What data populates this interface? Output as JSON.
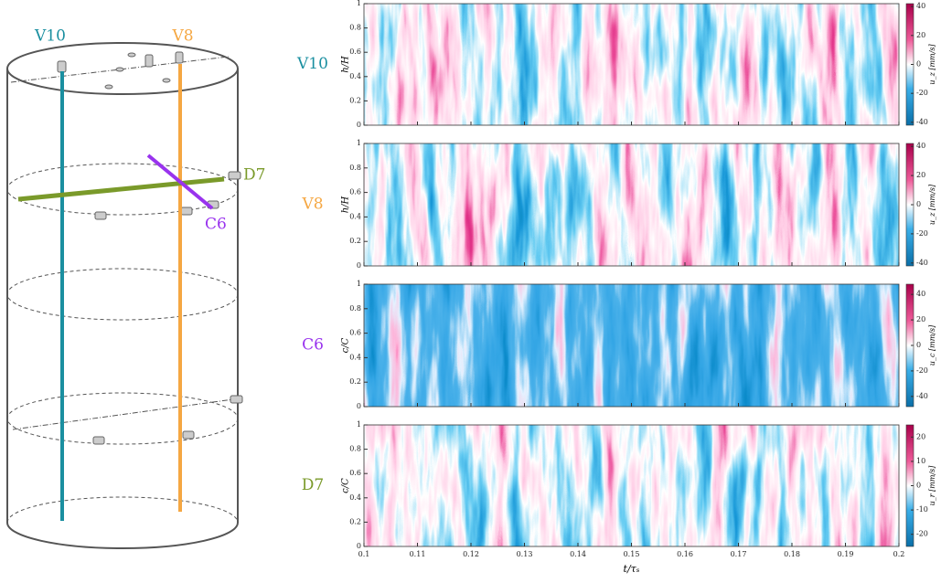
{
  "diagram": {
    "labels": [
      "V10",
      "V8",
      "D7",
      "C6"
    ]
  },
  "chart_data": [
    {
      "type": "heatmap",
      "row_label": "V10",
      "row_color": "#1a8fa0",
      "ylabel": "h/H",
      "ylim": [
        0,
        1
      ],
      "yticks": [
        0,
        0.2,
        0.4,
        0.6,
        0.8,
        1
      ],
      "xlim": [
        0.1,
        0.2
      ],
      "xticks": [
        0.1,
        0.11,
        0.12,
        0.13,
        0.14,
        0.15,
        0.16,
        0.17,
        0.18,
        0.19,
        0.2
      ],
      "colorbar_label": "u_z [mm/s]",
      "clim": [
        -42,
        42
      ],
      "cticks": [
        -40,
        -20,
        0,
        20,
        40
      ]
    },
    {
      "type": "heatmap",
      "row_label": "V8",
      "row_color": "#f5a742",
      "ylabel": "h/H",
      "ylim": [
        0,
        1
      ],
      "yticks": [
        0,
        0.2,
        0.4,
        0.6,
        0.8,
        1
      ],
      "xlim": [
        0.1,
        0.2
      ],
      "xticks": [
        0.1,
        0.11,
        0.12,
        0.13,
        0.14,
        0.15,
        0.16,
        0.17,
        0.18,
        0.19,
        0.2
      ],
      "colorbar_label": "u_z [mm/s]",
      "clim": [
        -42,
        42
      ],
      "cticks": [
        -40,
        -20,
        0,
        20,
        40
      ]
    },
    {
      "type": "heatmap",
      "row_label": "C6",
      "row_color": "#9933ee",
      "ylabel": "c/C",
      "ylim": [
        0,
        1
      ],
      "yticks": [
        0,
        0.2,
        0.4,
        0.6,
        0.8,
        1
      ],
      "xlim": [
        0.1,
        0.2
      ],
      "xticks": [
        0.1,
        0.11,
        0.12,
        0.13,
        0.14,
        0.15,
        0.16,
        0.17,
        0.18,
        0.19,
        0.2
      ],
      "colorbar_label": "u_c [mm/s]",
      "clim": [
        -48,
        48
      ],
      "cticks": [
        -40,
        -20,
        0,
        20,
        40
      ]
    },
    {
      "type": "heatmap",
      "row_label": "D7",
      "row_color": "#7a9a2a",
      "ylabel": "c/C",
      "ylim": [
        0,
        1
      ],
      "yticks": [
        0,
        0.2,
        0.4,
        0.6,
        0.8,
        1
      ],
      "xlim": [
        0.1,
        0.2
      ],
      "xticks": [
        0.1,
        0.11,
        0.12,
        0.13,
        0.14,
        0.15,
        0.16,
        0.17,
        0.18,
        0.19,
        0.2
      ],
      "xlabel": "t/τₛ",
      "colorbar_label": "u_r [mm/s]",
      "clim": [
        -25,
        25
      ],
      "cticks": [
        -20,
        -10,
        0,
        10,
        20
      ]
    }
  ]
}
